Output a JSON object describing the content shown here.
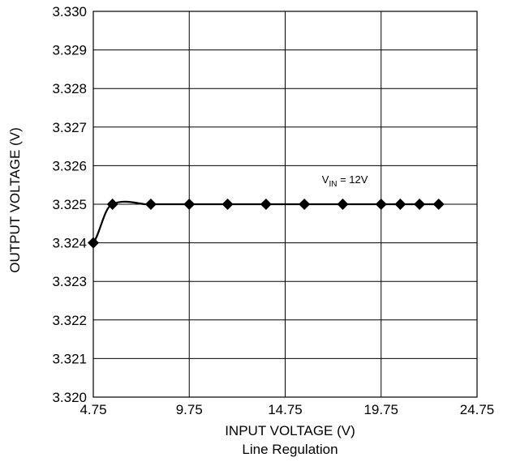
{
  "chart_data": {
    "type": "line",
    "title": "",
    "xlabel": "INPUT VOLTAGE (V)",
    "ylabel": "OUTPUT VOLTAGE (V)",
    "caption": "Line Regulation",
    "xlim": [
      4.75,
      24.75
    ],
    "ylim": [
      3.32,
      3.33
    ],
    "xticks": [
      "4.75",
      "9.75",
      "14.75",
      "19.75",
      "24.75"
    ],
    "yticks": [
      "3.320",
      "3.321",
      "3.322",
      "3.323",
      "3.324",
      "3.325",
      "3.326",
      "3.327",
      "3.328",
      "3.329",
      "3.330"
    ],
    "grid": true,
    "series": [
      {
        "x": [
          4.75,
          5.75,
          7.75,
          9.75,
          11.75,
          13.75,
          15.75,
          17.75,
          19.75,
          20.75,
          21.75,
          22.75
        ],
        "y": [
          3.324,
          3.325,
          3.325,
          3.325,
          3.325,
          3.325,
          3.325,
          3.325,
          3.325,
          3.325,
          3.325,
          3.325
        ]
      }
    ],
    "annotation": {
      "main": "V",
      "sub": "IN",
      "rest": " = 12V",
      "x": 16.75,
      "y": 3.3255
    }
  }
}
